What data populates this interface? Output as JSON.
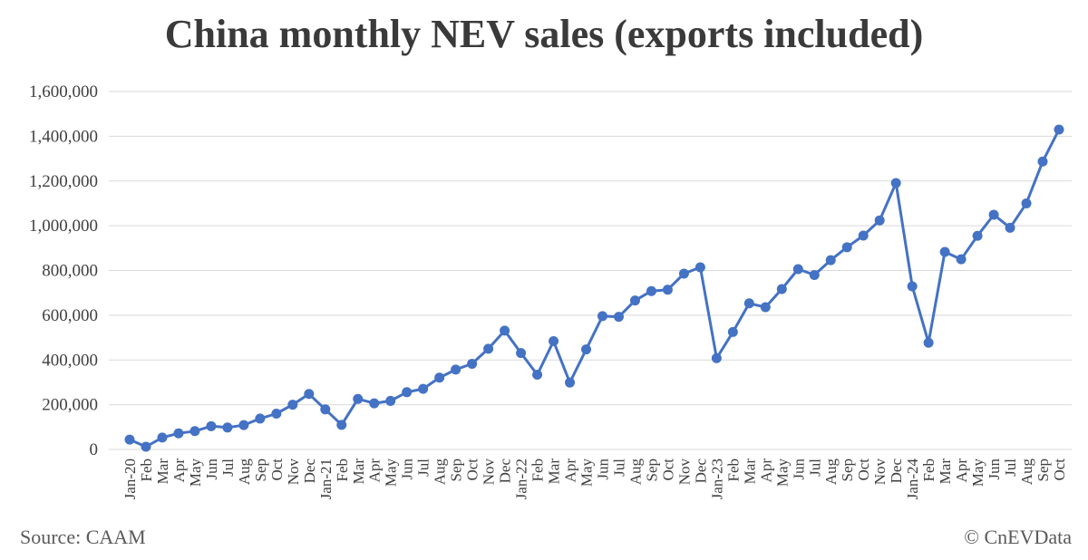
{
  "title": "China monthly NEV sales (exports included)",
  "source": "Source: CAAM",
  "copyright": "© CnEVData",
  "colors": {
    "line": "#4472c4",
    "grid": "#d9d9d9",
    "text": "#404040"
  },
  "chart_data": {
    "type": "line",
    "title": "China monthly NEV sales (exports included)",
    "xlabel": "",
    "ylabel": "",
    "ylim": [
      0,
      1600000
    ],
    "yticks": [
      "0",
      "200,000",
      "400,000",
      "600,000",
      "800,000",
      "1,000,000",
      "1,200,000",
      "1,400,000",
      "1,600,000"
    ],
    "grid": true,
    "legend": "none",
    "categories": [
      "Jan-20",
      "Feb",
      "Mar",
      "Apr",
      "May",
      "Jun",
      "Jul",
      "Aug",
      "Sep",
      "Oct",
      "Nov",
      "Dec",
      "Jan-21",
      "Feb",
      "Mar",
      "Apr",
      "May",
      "Jun",
      "Jul",
      "Aug",
      "Sep",
      "Oct",
      "Nov",
      "Dec",
      "Jan-22",
      "Feb",
      "Mar",
      "Apr",
      "May",
      "Jun",
      "Jul",
      "Aug",
      "Sep",
      "Oct",
      "Nov",
      "Dec",
      "Jan-23",
      "Feb",
      "Mar",
      "Apr",
      "May",
      "Jun",
      "Jul",
      "Aug",
      "Sep",
      "Oct",
      "Nov",
      "Dec",
      "Jan-24",
      "Feb",
      "Mar",
      "Apr",
      "May",
      "Jun",
      "Jul",
      "Aug",
      "Sep",
      "Oct"
    ],
    "series": [
      {
        "values": [
          44000,
          12000,
          53000,
          72000,
          82000,
          104000,
          98000,
          109000,
          138000,
          160000,
          200000,
          248000,
          179000,
          110000,
          226000,
          206000,
          217000,
          256000,
          271000,
          321000,
          357000,
          383000,
          450000,
          531000,
          431000,
          334000,
          484000,
          299000,
          447000,
          596000,
          593000,
          666000,
          708000,
          714000,
          786000,
          814000,
          408000,
          525000,
          653000,
          636000,
          717000,
          806000,
          780000,
          846000,
          904000,
          956000,
          1024000,
          1191000,
          729000,
          477000,
          883000,
          850000,
          955000,
          1049000,
          991000,
          1100000,
          1287000,
          1430000
        ]
      }
    ]
  }
}
